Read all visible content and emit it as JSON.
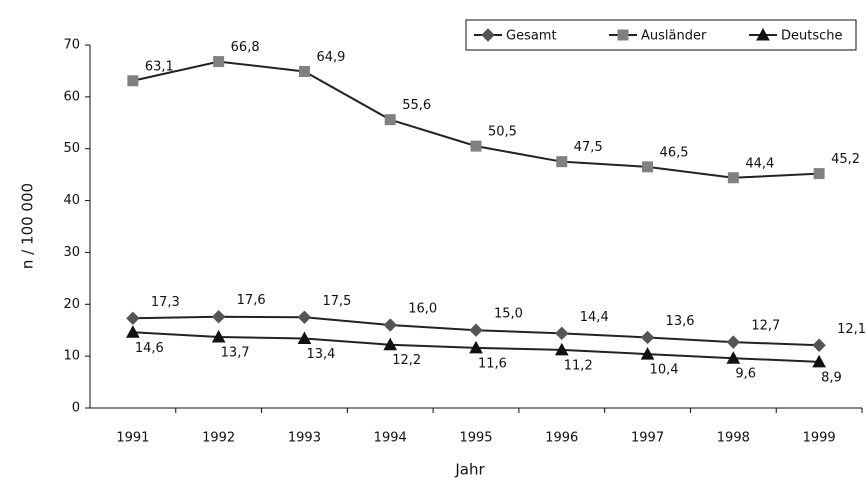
{
  "chart_data": {
    "type": "line",
    "y_label": "n / 100 000",
    "x_label": "Jahr",
    "categories": [
      "1991",
      "1992",
      "1993",
      "1994",
      "1995",
      "1996",
      "1997",
      "1998",
      "1999"
    ],
    "series": [
      {
        "name": "Gesamt",
        "color": "#555555",
        "marker": "diamond",
        "values": [
          17.3,
          17.6,
          17.5,
          16.0,
          15.0,
          14.4,
          13.6,
          12.7,
          12.1
        ],
        "value_labels": [
          "17,3",
          "17,6",
          "17,5",
          "16,0",
          "15,0",
          "14,4",
          "13,6",
          "12,7",
          "12,1"
        ]
      },
      {
        "name": "Ausländer",
        "color": "#808080",
        "marker": "square",
        "values": [
          63.1,
          66.8,
          64.9,
          55.6,
          50.5,
          47.5,
          46.5,
          44.4,
          45.2
        ],
        "value_labels": [
          "63,1",
          "66,8",
          "64,9",
          "55,6",
          "50,5",
          "47,5",
          "46,5",
          "44,4",
          "45,2"
        ]
      },
      {
        "name": "Deutsche",
        "color": "#111111",
        "marker": "triangle",
        "values": [
          14.6,
          13.7,
          13.4,
          12.2,
          11.6,
          11.2,
          10.4,
          9.6,
          8.9
        ],
        "value_labels": [
          "14,6",
          "13,7",
          "13,4",
          "12,2",
          "11,6",
          "11,2",
          "10,4",
          "9,6",
          "8,9"
        ]
      }
    ],
    "ylim": [
      0,
      70
    ],
    "yticks": [
      0,
      10,
      20,
      30,
      40,
      50,
      60,
      70
    ],
    "grid": false,
    "legend": "top-right"
  }
}
